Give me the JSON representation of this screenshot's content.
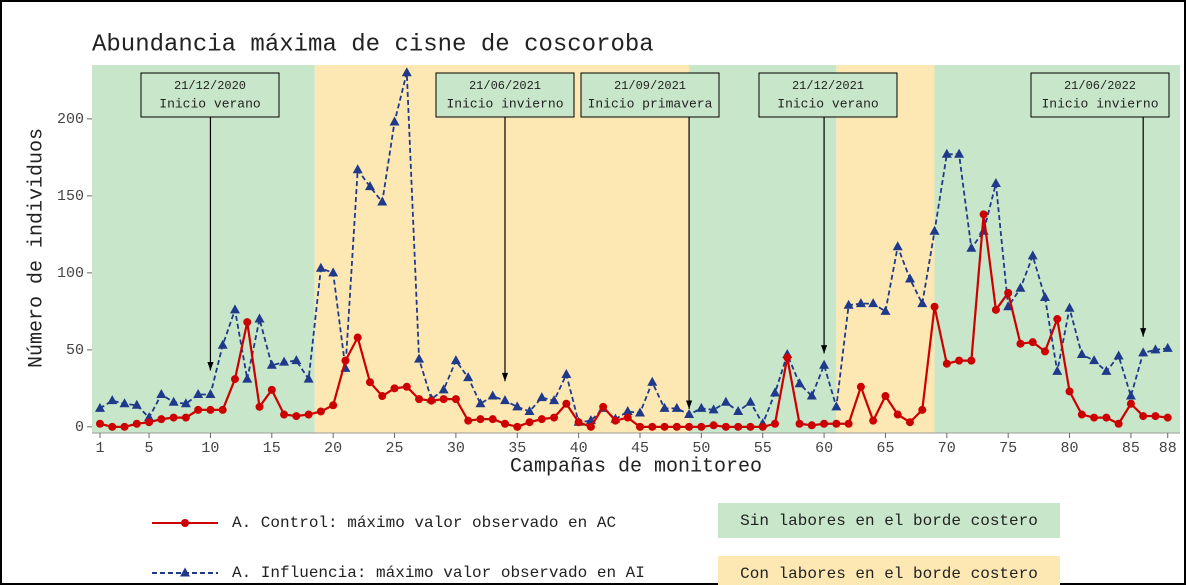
{
  "chart_data": {
    "type": "line",
    "title": "Abundancia máxima de cisne de coscoroba",
    "xlabel": "Campañas de monitoreo",
    "ylabel": "Número de individuos",
    "x": [
      1,
      2,
      3,
      4,
      5,
      6,
      7,
      8,
      9,
      10,
      11,
      12,
      13,
      14,
      15,
      16,
      17,
      18,
      19,
      20,
      21,
      22,
      23,
      24,
      25,
      26,
      27,
      28,
      29,
      30,
      31,
      32,
      33,
      34,
      35,
      36,
      37,
      38,
      39,
      40,
      41,
      42,
      43,
      44,
      45,
      46,
      47,
      48,
      49,
      50,
      51,
      52,
      53,
      54,
      55,
      56,
      57,
      58,
      59,
      60,
      61,
      62,
      63,
      64,
      65,
      66,
      67,
      68,
      69,
      70,
      71,
      72,
      73,
      74,
      75,
      76,
      77,
      78,
      79,
      80,
      81,
      82,
      83,
      84,
      85,
      86,
      87,
      88
    ],
    "series": [
      {
        "name": "A. Control: máximo valor observado en AC",
        "color": "#cc0000",
        "marker": "circle",
        "dashed": false,
        "values": [
          2,
          0,
          0,
          2,
          3,
          5,
          6,
          6,
          11,
          11,
          11,
          31,
          68,
          13,
          24,
          8,
          7,
          8,
          10,
          14,
          43,
          58,
          29,
          20,
          25,
          26,
          18,
          17,
          18,
          18,
          4,
          5,
          5,
          2,
          0,
          3,
          5,
          6,
          15,
          3,
          0,
          13,
          4,
          6,
          0,
          0,
          0,
          0,
          0,
          0,
          1,
          0,
          0,
          0,
          0,
          2,
          45,
          2,
          1,
          2,
          2,
          2,
          26,
          4,
          20,
          8,
          3,
          11,
          78,
          41,
          43,
          43,
          138,
          76,
          87,
          54,
          55,
          49,
          70,
          23,
          8,
          6,
          6,
          2,
          15,
          7,
          7,
          6
        ]
      },
      {
        "name": "A. Influencia: máximo valor observado en AI",
        "color": "#1f3a8a",
        "marker": "triangle",
        "dashed": true,
        "values": [
          12,
          17,
          15,
          14,
          6,
          21,
          16,
          15,
          21,
          21,
          53,
          76,
          31,
          70,
          40,
          42,
          43,
          31,
          103,
          100,
          38,
          167,
          156,
          146,
          198,
          230,
          44,
          18,
          24,
          43,
          32,
          15,
          20,
          17,
          13,
          10,
          19,
          17,
          34,
          3,
          4,
          12,
          5,
          10,
          9,
          29,
          12,
          12,
          8,
          12,
          11,
          16,
          10,
          16,
          2,
          22,
          47,
          28,
          20,
          40,
          13,
          79,
          80,
          80,
          75,
          117,
          96,
          80,
          127,
          177,
          177,
          116,
          127,
          158,
          78,
          90,
          111,
          84,
          36,
          77,
          47,
          43,
          36,
          46,
          20,
          48,
          50,
          51
        ]
      }
    ],
    "xlim": [
      0.35,
      89
    ],
    "ylim": [
      -4,
      235
    ],
    "xticks": [
      1,
      5,
      10,
      15,
      20,
      25,
      30,
      35,
      40,
      45,
      50,
      55,
      60,
      65,
      70,
      75,
      80,
      85,
      88
    ],
    "yticks": [
      0,
      50,
      100,
      150,
      200
    ],
    "grid": false,
    "regions": {
      "breaks": [
        18.5,
        49,
        61,
        69
      ],
      "labels": [
        "Sin labores en el borde costero",
        "Con labores en el borde costero"
      ],
      "colors": [
        "#c8e6c9",
        "#fde8b4"
      ]
    },
    "annotations": [
      {
        "date": "21/12/2020",
        "text": "Inicio verano",
        "x": 10,
        "y": 34
      },
      {
        "date": "21/06/2021",
        "text": "Inicio invierno",
        "x": 34,
        "y": 27
      },
      {
        "date": "21/09/2021",
        "text": "Inicio primavera",
        "x": 49,
        "y": 9
      },
      {
        "date": "21/12/2021",
        "text": "Inicio verano",
        "x": 60,
        "y": 45
      },
      {
        "date": "21/06/2022",
        "text": "Inicio invierno",
        "x": 86,
        "y": 56
      }
    ]
  }
}
